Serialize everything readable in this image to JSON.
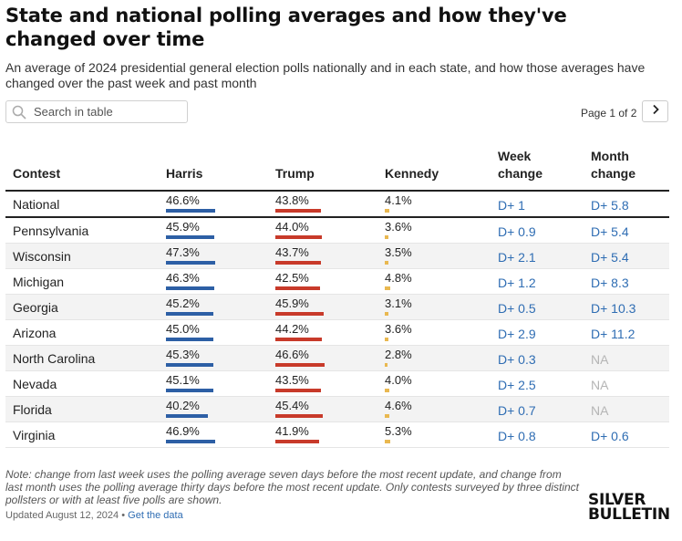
{
  "title": "State and national polling averages and how they've changed over time",
  "subtitle": "An average of 2024 presidential general election polls nationally and in each state, and how those averages have changed over the past week and past month",
  "search": {
    "placeholder": "Search in table",
    "icon": "search-icon"
  },
  "pager": {
    "label": "Page 1 of 2",
    "next_icon": "chevron-right-icon"
  },
  "columns": {
    "contest": "Contest",
    "harris": "Harris",
    "trump": "Trump",
    "kennedy": "Kennedy",
    "week_line1": "Week",
    "week_line2": "change",
    "month_line1": "Month",
    "month_line2": "change"
  },
  "colors": {
    "harris": "#2d5fa5",
    "trump": "#c83a2a",
    "kennedy": "#e9b850",
    "change": "#2f6db3",
    "na": "#b5b5b5"
  },
  "rows": [
    {
      "contest": "National",
      "harris": "46.6%",
      "harris_v": 46.6,
      "trump": "43.8%",
      "trump_v": 43.8,
      "kennedy": "4.1%",
      "kennedy_v": 4.1,
      "week": "D+ 1",
      "month": "D+ 5.8"
    },
    {
      "contest": "Pennsylvania",
      "harris": "45.9%",
      "harris_v": 45.9,
      "trump": "44.0%",
      "trump_v": 44.0,
      "kennedy": "3.6%",
      "kennedy_v": 3.6,
      "week": "D+ 0.9",
      "month": "D+ 5.4"
    },
    {
      "contest": "Wisconsin",
      "harris": "47.3%",
      "harris_v": 47.3,
      "trump": "43.7%",
      "trump_v": 43.7,
      "kennedy": "3.5%",
      "kennedy_v": 3.5,
      "week": "D+ 2.1",
      "month": "D+ 5.4"
    },
    {
      "contest": "Michigan",
      "harris": "46.3%",
      "harris_v": 46.3,
      "trump": "42.5%",
      "trump_v": 42.5,
      "kennedy": "4.8%",
      "kennedy_v": 4.8,
      "week": "D+ 1.2",
      "month": "D+ 8.3"
    },
    {
      "contest": "Georgia",
      "harris": "45.2%",
      "harris_v": 45.2,
      "trump": "45.9%",
      "trump_v": 45.9,
      "kennedy": "3.1%",
      "kennedy_v": 3.1,
      "week": "D+ 0.5",
      "month": "D+ 10.3"
    },
    {
      "contest": "Arizona",
      "harris": "45.0%",
      "harris_v": 45.0,
      "trump": "44.2%",
      "trump_v": 44.2,
      "kennedy": "3.6%",
      "kennedy_v": 3.6,
      "week": "D+ 2.9",
      "month": "D+ 11.2"
    },
    {
      "contest": "North Carolina",
      "harris": "45.3%",
      "harris_v": 45.3,
      "trump": "46.6%",
      "trump_v": 46.6,
      "kennedy": "2.8%",
      "kennedy_v": 2.8,
      "week": "D+ 0.3",
      "month": "NA"
    },
    {
      "contest": "Nevada",
      "harris": "45.1%",
      "harris_v": 45.1,
      "trump": "43.5%",
      "trump_v": 43.5,
      "kennedy": "4.0%",
      "kennedy_v": 4.0,
      "week": "D+ 2.5",
      "month": "NA"
    },
    {
      "contest": "Florida",
      "harris": "40.2%",
      "harris_v": 40.2,
      "trump": "45.4%",
      "trump_v": 45.4,
      "kennedy": "4.6%",
      "kennedy_v": 4.6,
      "week": "D+ 0.7",
      "month": "NA"
    },
    {
      "contest": "Virginia",
      "harris": "46.9%",
      "harris_v": 46.9,
      "trump": "41.9%",
      "trump_v": 41.9,
      "kennedy": "5.3%",
      "kennedy_v": 5.3,
      "week": "D+ 0.8",
      "month": "D+ 0.6"
    }
  ],
  "note": "Note: change from last week uses the polling average seven days before the most recent update, and change from last month uses the polling average thirty days before the most recent update. Only contests surveyed by three distinct pollsters or with at least five polls are shown.",
  "updated": "Updated August 12, 2024",
  "separator": "•",
  "data_link": "Get the data",
  "logo": {
    "line1": "SILVER",
    "line2": "BULLETIN"
  }
}
